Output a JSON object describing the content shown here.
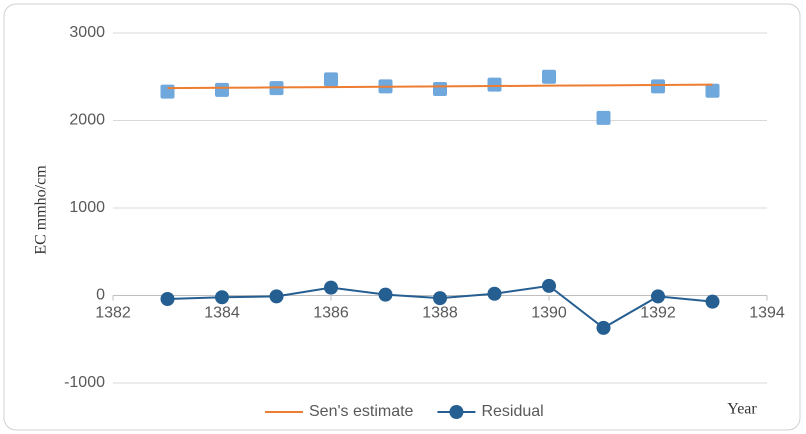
{
  "chart_data": {
    "type": "line",
    "x": [
      1383,
      1384,
      1385,
      1386,
      1387,
      1388,
      1389,
      1390,
      1391,
      1392,
      1393
    ],
    "series": [
      {
        "color": "#6fa8dc",
        "marker": "square",
        "line": false,
        "legend": false,
        "values": [
          2330,
          2350,
          2370,
          2470,
          2390,
          2360,
          2410,
          2500,
          2030,
          2390,
          2340
        ]
      },
      {
        "name": "Sen's estimate",
        "color": "#ed7d31",
        "marker": "none",
        "line": true,
        "legend": true,
        "values": [
          2370,
          2374,
          2378,
          2382,
          2386,
          2390,
          2394,
          2398,
          2402,
          2406,
          2410
        ]
      },
      {
        "name": "Residual",
        "color": "#255e91",
        "marker": "circle",
        "line": true,
        "legend": true,
        "values": [
          -40,
          -20,
          -10,
          90,
          10,
          -30,
          20,
          110,
          -370,
          -10,
          -70
        ]
      }
    ],
    "y_label": "EC mmho/cm",
    "x_label": "Year",
    "xlim": [
      1382,
      1394
    ],
    "xticks": [
      1382,
      1384,
      1386,
      1388,
      1390,
      1392,
      1394
    ],
    "ylim": [
      -1000,
      3000
    ],
    "yticks": [
      -1000,
      0,
      1000,
      2000,
      3000
    ],
    "grid": true,
    "legend": "bottom"
  }
}
